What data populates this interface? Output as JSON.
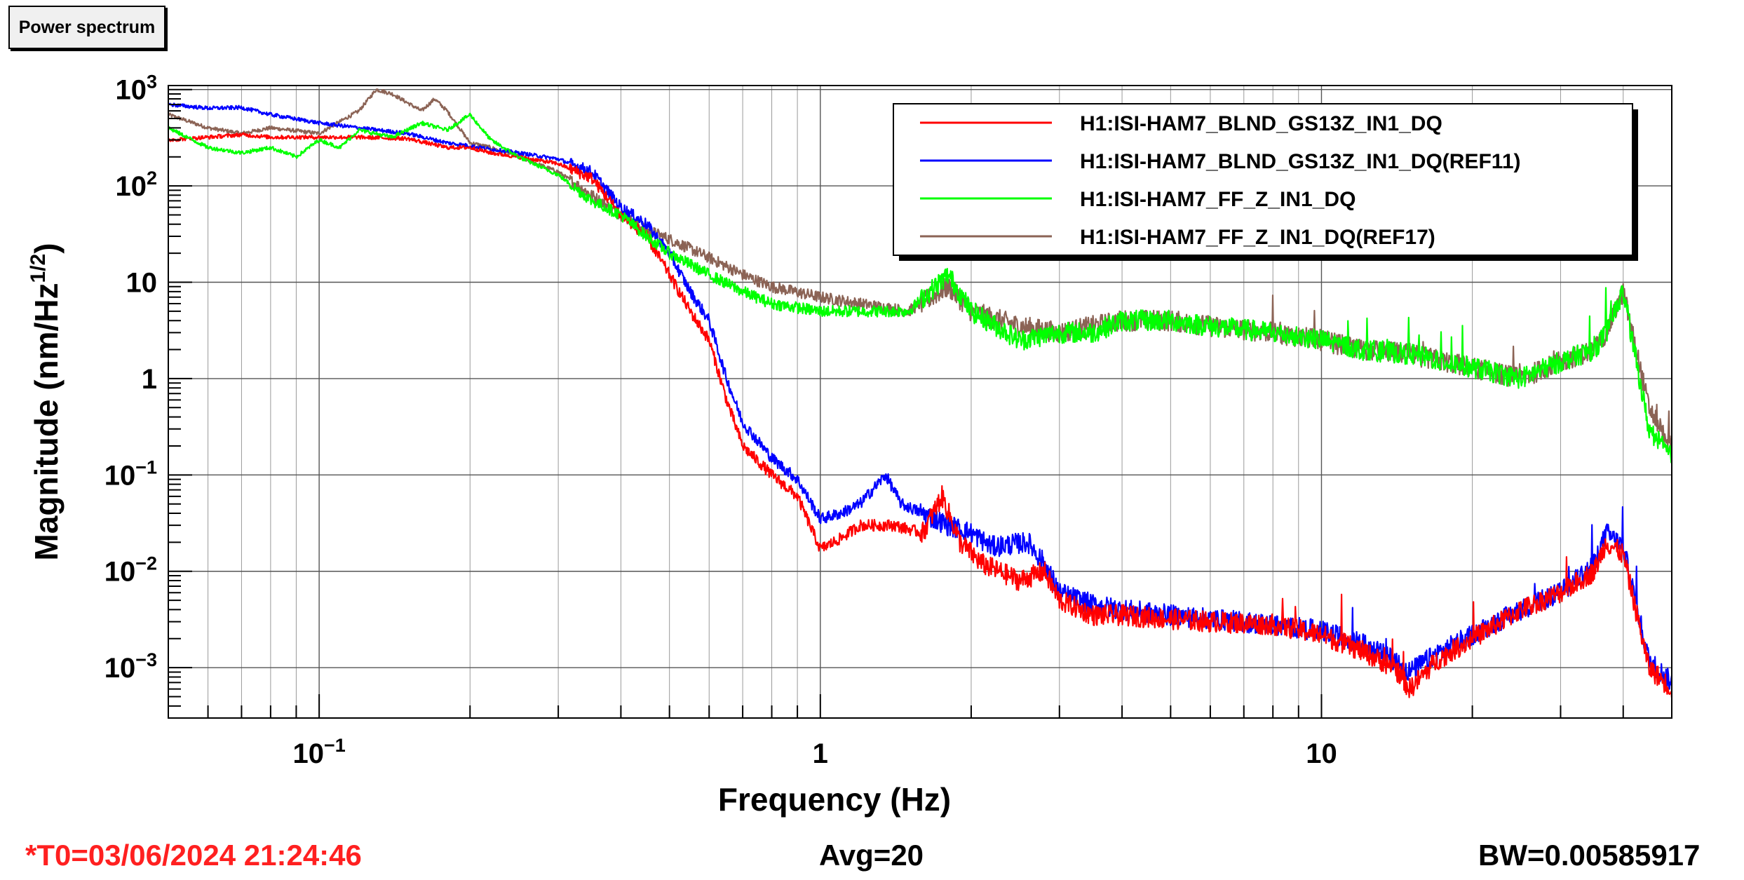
{
  "title_box": {
    "label": "Power spectrum"
  },
  "footer": {
    "t0": "*T0=03/06/2024 21:24:46",
    "avg": "Avg=20",
    "bw": "BW=0.00585917"
  },
  "chart_data": {
    "type": "line",
    "x_scale": "log",
    "y_scale": "log",
    "xlim": [
      0.05,
      50
    ],
    "ylim": [
      0.0003,
      1100
    ],
    "xlabel": "Frequency (Hz)",
    "ylabel": "Magnitude (nm/Hz^1/2)",
    "ylabel_main": "Magnitude (nm/Hz",
    "ylabel_sup": "1/2",
    "ylabel_end": ")",
    "grid": true,
    "legend_position": "top-right",
    "x_ticks": [
      {
        "value": 0.1,
        "label": "10",
        "sup": "−1"
      },
      {
        "value": 1,
        "label": "1",
        "sup": ""
      },
      {
        "value": 10,
        "label": "10",
        "sup": ""
      }
    ],
    "y_ticks": [
      {
        "value": 0.001,
        "label": "10",
        "sup": "−3"
      },
      {
        "value": 0.01,
        "label": "10",
        "sup": "−2"
      },
      {
        "value": 0.1,
        "label": "10",
        "sup": "−1"
      },
      {
        "value": 1,
        "label": "1",
        "sup": ""
      },
      {
        "value": 10,
        "label": "10",
        "sup": ""
      },
      {
        "value": 100,
        "label": "10",
        "sup": "2"
      },
      {
        "value": 1000,
        "label": "10",
        "sup": "3"
      }
    ],
    "series": [
      {
        "name": "H1:ISI-HAM7_BLND_GS13Z_IN1_DQ",
        "color": "#ff0000",
        "x": [
          0.05,
          0.06,
          0.07,
          0.08,
          0.1,
          0.12,
          0.15,
          0.18,
          0.2,
          0.22,
          0.25,
          0.3,
          0.35,
          0.4,
          0.45,
          0.5,
          0.55,
          0.6,
          0.65,
          0.7,
          0.8,
          0.9,
          1.0,
          1.1,
          1.2,
          1.4,
          1.6,
          1.75,
          1.9,
          2.1,
          2.5,
          2.8,
          3.0,
          3.5,
          4.0,
          5.0,
          6.0,
          8.0,
          10.0,
          12.0,
          14.0,
          15.0,
          17.0,
          20.0,
          25.0,
          30.0,
          35.0,
          37.0,
          40.0,
          45.0,
          50.0
        ],
        "y": [
          300,
          320,
          340,
          320,
          320,
          320,
          310,
          250,
          250,
          220,
          200,
          170,
          120,
          50,
          30,
          12,
          5,
          2.5,
          0.6,
          0.2,
          0.1,
          0.06,
          0.017,
          0.022,
          0.03,
          0.03,
          0.025,
          0.06,
          0.02,
          0.012,
          0.008,
          0.01,
          0.005,
          0.0035,
          0.0035,
          0.0032,
          0.003,
          0.0028,
          0.0022,
          0.0015,
          0.001,
          0.0006,
          0.0012,
          0.002,
          0.004,
          0.006,
          0.01,
          0.02,
          0.015,
          0.001,
          0.0006
        ]
      },
      {
        "name": "H1:ISI-HAM7_BLND_GS13Z_IN1_DQ(REF11)",
        "color": "#0000ff",
        "x": [
          0.05,
          0.06,
          0.07,
          0.08,
          0.1,
          0.12,
          0.15,
          0.18,
          0.2,
          0.22,
          0.25,
          0.3,
          0.35,
          0.4,
          0.45,
          0.5,
          0.55,
          0.6,
          0.65,
          0.7,
          0.8,
          0.9,
          1.0,
          1.1,
          1.2,
          1.35,
          1.45,
          1.6,
          1.8,
          2.0,
          2.2,
          2.6,
          2.8,
          3.0,
          3.5,
          4.0,
          5.0,
          6.0,
          8.0,
          10.0,
          12.0,
          14.0,
          15.0,
          17.0,
          20.0,
          25.0,
          30.0,
          35.0,
          37.0,
          40.0,
          45.0,
          50.0
        ],
        "y": [
          700,
          640,
          650,
          550,
          450,
          400,
          350,
          280,
          260,
          240,
          220,
          190,
          140,
          60,
          40,
          20,
          8,
          4,
          1,
          0.35,
          0.15,
          0.09,
          0.035,
          0.04,
          0.05,
          0.1,
          0.05,
          0.04,
          0.03,
          0.025,
          0.018,
          0.02,
          0.012,
          0.006,
          0.0045,
          0.004,
          0.0035,
          0.0032,
          0.0028,
          0.0024,
          0.0018,
          0.0012,
          0.0009,
          0.0014,
          0.0022,
          0.004,
          0.006,
          0.012,
          0.025,
          0.018,
          0.0012,
          0.0007
        ]
      },
      {
        "name": "H1:ISI-HAM7_FF_Z_IN1_DQ",
        "color": "#00ff00",
        "x": [
          0.05,
          0.06,
          0.07,
          0.08,
          0.09,
          0.1,
          0.11,
          0.12,
          0.14,
          0.16,
          0.18,
          0.2,
          0.22,
          0.25,
          0.3,
          0.35,
          0.4,
          0.45,
          0.5,
          0.6,
          0.7,
          0.8,
          1.0,
          1.2,
          1.5,
          1.8,
          2.0,
          2.5,
          3.0,
          3.5,
          4.0,
          5.0,
          6.0,
          8.0,
          10.0,
          12.0,
          15.0,
          20.0,
          25.0,
          30.0,
          35.0,
          37.0,
          40.0,
          45.0,
          50.0
        ],
        "y": [
          400,
          250,
          220,
          250,
          200,
          300,
          250,
          380,
          320,
          450,
          380,
          550,
          300,
          200,
          130,
          70,
          50,
          30,
          20,
          12,
          8,
          6,
          5,
          5,
          5,
          12,
          5,
          2.5,
          3,
          3,
          4,
          4,
          3.5,
          3,
          2.5,
          2,
          1.8,
          1.3,
          1,
          1.5,
          2,
          3,
          8,
          0.3,
          0.15
        ]
      },
      {
        "name": "H1:ISI-HAM7_FF_Z_IN1_DQ(REF17)",
        "color": "#8b6355",
        "x": [
          0.05,
          0.06,
          0.07,
          0.08,
          0.1,
          0.12,
          0.13,
          0.14,
          0.16,
          0.17,
          0.18,
          0.2,
          0.22,
          0.25,
          0.3,
          0.35,
          0.4,
          0.45,
          0.5,
          0.6,
          0.7,
          0.8,
          1.0,
          1.2,
          1.5,
          1.8,
          2.0,
          2.5,
          3.0,
          3.5,
          4.0,
          5.0,
          6.0,
          8.0,
          10.0,
          12.0,
          15.0,
          20.0,
          25.0,
          30.0,
          35.0,
          37.0,
          40.0,
          45.0,
          50.0
        ],
        "y": [
          550,
          400,
          350,
          400,
          350,
          600,
          1000,
          900,
          600,
          800,
          600,
          280,
          250,
          200,
          140,
          80,
          50,
          35,
          28,
          18,
          12,
          9,
          7,
          6,
          5,
          9,
          5,
          3.5,
          3,
          3.5,
          4,
          4,
          3.5,
          3,
          2.5,
          2,
          1.8,
          1.3,
          1,
          1.5,
          2,
          3,
          8,
          0.5,
          0.2
        ]
      }
    ]
  }
}
